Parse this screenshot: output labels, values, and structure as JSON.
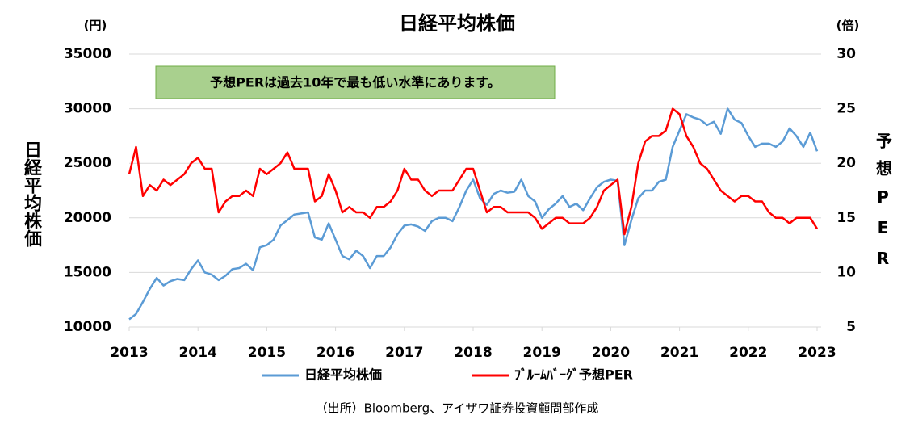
{
  "chart_data": {
    "type": "line",
    "title": "日経平均株価",
    "y_unit": "(円)",
    "y2_unit": "(倍)",
    "y_label": "日経平均株価",
    "y2_label": "予想PER",
    "annotation": "予想PERは過去10年で最も低い水準にあります。",
    "source": "（出所）Bloomberg、アイザワ証券投資顧問部作成",
    "x": [
      2013,
      2013.1,
      2013.2,
      2013.3,
      2013.4,
      2013.5,
      2013.6,
      2013.7,
      2013.8,
      2013.9,
      2014,
      2014.1,
      2014.2,
      2014.3,
      2014.4,
      2014.5,
      2014.6,
      2014.7,
      2014.8,
      2014.9,
      2015,
      2015.1,
      2015.2,
      2015.3,
      2015.4,
      2015.5,
      2015.6,
      2015.7,
      2015.8,
      2015.9,
      2016,
      2016.1,
      2016.2,
      2016.3,
      2016.4,
      2016.5,
      2016.6,
      2016.7,
      2016.8,
      2016.9,
      2017,
      2017.1,
      2017.2,
      2017.3,
      2017.4,
      2017.5,
      2017.6,
      2017.7,
      2017.8,
      2017.9,
      2018,
      2018.1,
      2018.2,
      2018.3,
      2018.4,
      2018.5,
      2018.6,
      2018.7,
      2018.8,
      2018.9,
      2019,
      2019.1,
      2019.2,
      2019.3,
      2019.4,
      2019.5,
      2019.6,
      2019.7,
      2019.8,
      2019.9,
      2020,
      2020.1,
      2020.2,
      2020.3,
      2020.4,
      2020.5,
      2020.6,
      2020.7,
      2020.8,
      2020.9,
      2021,
      2021.1,
      2021.2,
      2021.3,
      2021.4,
      2021.5,
      2021.6,
      2021.7,
      2021.8,
      2021.9,
      2022,
      2022.1,
      2022.2,
      2022.3,
      2022.4,
      2022.5,
      2022.6,
      2022.7,
      2022.8,
      2022.9,
      2023
    ],
    "xlim": [
      2013,
      2023
    ],
    "xticks": [
      2013,
      2014,
      2015,
      2016,
      2017,
      2018,
      2019,
      2020,
      2021,
      2022,
      2023
    ],
    "ylim": [
      10000,
      35000
    ],
    "yticks": [
      10000,
      15000,
      20000,
      25000,
      30000,
      35000
    ],
    "y2lim": [
      5,
      30
    ],
    "y2ticks": [
      5,
      10,
      15,
      20,
      25,
      30
    ],
    "grid": true,
    "series": [
      {
        "name": "日経平均株価",
        "color": "#5b9bd5",
        "values": [
          10700,
          11200,
          12300,
          13500,
          14500,
          13800,
          14200,
          14400,
          14300,
          15300,
          16100,
          15000,
          14800,
          14300,
          14700,
          15300,
          15400,
          15800,
          15200,
          17300,
          17500,
          18000,
          19300,
          19800,
          20300,
          20400,
          20500,
          18200,
          18000,
          19500,
          18000,
          16500,
          16200,
          17000,
          16500,
          15400,
          16500,
          16500,
          17300,
          18500,
          19300,
          19400,
          19200,
          18800,
          19700,
          20000,
          20000,
          19700,
          21000,
          22500,
          23500,
          21800,
          21200,
          22200,
          22500,
          22300,
          22400,
          23500,
          22000,
          21500,
          20000,
          20800,
          21300,
          22000,
          21000,
          21300,
          20700,
          21800,
          22800,
          23300,
          23500,
          23400,
          17500,
          19800,
          21800,
          22500,
          22500,
          23300,
          23500,
          26500,
          28000,
          29500,
          29200,
          29000,
          28500,
          28800,
          27700,
          30000,
          29000,
          28700,
          27500,
          26500,
          26800,
          26800,
          26500,
          27000,
          28200,
          27500,
          26500,
          27800,
          26100
        ]
      },
      {
        "name": "ﾌﾞﾙｰﾑﾊﾞｰｸﾞ予想PER",
        "color": "#ff0000",
        "axis": "y2",
        "values": [
          19,
          21.5,
          17,
          18,
          17.5,
          18.5,
          18,
          18.5,
          19,
          20,
          20.5,
          19.5,
          19.5,
          15.5,
          16.5,
          17,
          17,
          17.5,
          17,
          19.5,
          19,
          19.5,
          20,
          21,
          19.5,
          19.5,
          19.5,
          16.5,
          17,
          19,
          17.5,
          15.5,
          16,
          15.5,
          15.5,
          15,
          16,
          16,
          16.5,
          17.5,
          19.5,
          18.5,
          18.5,
          17.5,
          17,
          17.5,
          17.5,
          17.5,
          18.5,
          19.5,
          19.5,
          17.5,
          15.5,
          16,
          16,
          15.5,
          15.5,
          15.5,
          15.5,
          15,
          14,
          14.5,
          15,
          15,
          14.5,
          14.5,
          14.5,
          15,
          16,
          17.5,
          18,
          18.5,
          13.5,
          16,
          20,
          22,
          22.5,
          22.5,
          23,
          25,
          24.5,
          22.5,
          21.5,
          20,
          19.5,
          18.5,
          17.5,
          17,
          16.5,
          17,
          17,
          16.5,
          16.5,
          15.5,
          15,
          15,
          14.5,
          15,
          15,
          15,
          14
        ]
      }
    ]
  }
}
